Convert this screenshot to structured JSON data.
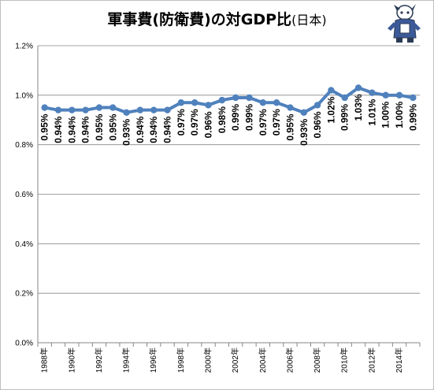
{
  "chart_data": {
    "type": "line",
    "title": "軍事費(防衛費)の対GDP比",
    "title_suffix": "(日本)",
    "xlabel": "",
    "ylabel": "",
    "ylim": [
      0.0,
      1.2
    ],
    "y_ticks": [
      "0.0%",
      "0.2%",
      "0.4%",
      "0.6%",
      "0.8%",
      "1.0%",
      "1.2%"
    ],
    "y_tick_values": [
      0.0,
      0.2,
      0.4,
      0.6,
      0.8,
      1.0,
      1.2
    ],
    "grid": "horizontal",
    "legend": "none",
    "line_color": "#4f81bd",
    "x": [
      "1988年",
      "1989年",
      "1990年",
      "1991年",
      "1992年",
      "1993年",
      "1994年",
      "1995年",
      "1996年",
      "1997年",
      "1998年",
      "1999年",
      "2000年",
      "2001年",
      "2002年",
      "2003年",
      "2004年",
      "2005年",
      "2006年",
      "2007年",
      "2008年",
      "2009年",
      "2010年",
      "2011年",
      "2012年",
      "2013年",
      "2014年",
      "2015年"
    ],
    "x_tick_labels": [
      "1988年",
      "",
      "1990年",
      "",
      "1992年",
      "",
      "1994年",
      "",
      "1996年",
      "",
      "1998年",
      "",
      "2000年",
      "",
      "2002年",
      "",
      "2004年",
      "",
      "2006年",
      "",
      "2008年",
      "",
      "2010年",
      "",
      "2012年",
      "",
      "2014年",
      ""
    ],
    "series": [
      {
        "values": [
          0.95,
          0.94,
          0.94,
          0.94,
          0.95,
          0.95,
          0.93,
          0.94,
          0.94,
          0.94,
          0.97,
          0.97,
          0.96,
          0.98,
          0.99,
          0.99,
          0.97,
          0.97,
          0.95,
          0.93,
          0.96,
          1.02,
          0.99,
          1.03,
          1.01,
          1.0,
          1.0,
          0.99
        ],
        "data_labels": [
          "0.95%",
          "0.94%",
          "0.94%",
          "0.94%",
          "0.95%",
          "0.95%",
          "0.93%",
          "0.94%",
          "0.94%",
          "0.94%",
          "0.97%",
          "0.97%",
          "0.96%",
          "0.98%",
          "0.99%",
          "0.99%",
          "0.97%",
          "0.97%",
          "0.95%",
          "0.93%",
          "0.96%",
          "1.02%",
          "0.99%",
          "1.03%",
          "1.01%",
          "1.00%",
          "1.00%",
          "0.99%"
        ]
      }
    ]
  }
}
